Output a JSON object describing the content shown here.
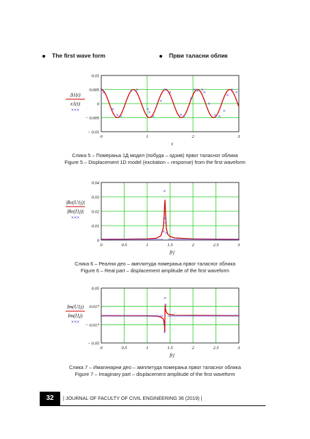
{
  "bullets": {
    "left": "The first wave form",
    "right": "Први таласни облик"
  },
  "figure5": {
    "caption_sr": "Слика 5 – Померања 1Д модел (побуда – одзив) првог таласног облика",
    "caption_en": "Figure 5 – Displacement 1D model (excitation – response) from the first waveform"
  },
  "figure6": {
    "caption_sr": "Слика 6 – Реални део – амплитуда померања првог таласног облика",
    "caption_en": "Figure 6 – Real part – displacement amplitude of the first waveform"
  },
  "figure7": {
    "caption_sr": "Слика 7 – Имагинарни део – амплитуда померања првог таласног облика",
    "caption_en": "Figure 7 – Imaginary part – displacement amplitude of the first waveform"
  },
  "footer": {
    "page": "32",
    "journal": "| JOURNAL OF FACULTY OF CIVIL ENGINEERING 36 (2019) |"
  },
  "colors": {
    "line": "#d40000",
    "marker": "#5a4fd6",
    "grid": "#22cc22",
    "axis": "#000000"
  },
  "chart_data": [
    {
      "type": "line",
      "ylabel_top": "Δ1(t)",
      "ylabel_bottom": "x1(t)",
      "ylabel_legend": "×××",
      "xlabel": "t",
      "xlim": [
        0,
        3
      ],
      "ylim": [
        -0.01,
        0.01
      ],
      "xticks": [
        "0",
        "1",
        "2",
        "3"
      ],
      "yticks": [
        "0.01",
        "0.005",
        "0",
        "− 0.005",
        "− 0.01"
      ],
      "series": [
        {
          "style": "line",
          "amplitude": 0.005,
          "period": 0.7,
          "x_range": [
            0,
            3
          ]
        },
        {
          "style": "markers",
          "x": [
            0,
            0.05,
            0.25,
            0.35,
            0.43,
            0.65,
            0.78,
            1.02,
            1.05,
            1.13,
            1.3,
            1.39,
            1.5,
            1.74,
            1.8,
            1.96,
            2.03,
            2.1,
            2.2,
            2.25,
            2.35,
            2.48,
            2.58,
            2.68,
            2.75,
            2.85,
            2.95
          ],
          "y": [
            0.005,
            0.004,
            -0.002,
            -0.004,
            -0.0045,
            0.0045,
            0.005,
            -0.002,
            -0.003,
            -0.0045,
            0.001,
            0.005,
            0.004,
            -0.004,
            -0.0045,
            0.002,
            0.005,
            0.0045,
            0.005,
            0.004,
            0,
            -0.004,
            -0.0045,
            -0.0025,
            0.003,
            0.005,
            0.004
          ]
        }
      ]
    },
    {
      "type": "line",
      "ylabel_top": "|Re(U1j)|",
      "ylabel_bottom": "|Re(I1j)|",
      "ylabel_legend": "×××",
      "xlabel": "frj",
      "xlim": [
        0,
        3
      ],
      "ylim": [
        0,
        0.04
      ],
      "xticks": [
        "0",
        "0.5",
        "1",
        "1.5",
        "2",
        "2.5",
        "3"
      ],
      "yticks": [
        "0.04",
        "0.03",
        "0.02",
        "0.01",
        "0"
      ],
      "series": [
        {
          "style": "line",
          "x": [
            0,
            1.0,
            1.2,
            1.3,
            1.35,
            1.37,
            1.38,
            1.39,
            1.4,
            1.42,
            1.45,
            1.5,
            1.6,
            2.0,
            3.0
          ],
          "y": [
            0.0005,
            0.0008,
            0.0013,
            0.003,
            0.008,
            0.016,
            0.024,
            0.028,
            0.02,
            0.008,
            0.004,
            0.0025,
            0.0015,
            0.0008,
            0.0005
          ]
        },
        {
          "style": "markers",
          "x": [
            1.38,
            1.39,
            1.4,
            1.36,
            1.42
          ],
          "y": [
            0.034,
            0.015,
            0.012,
            0.006,
            0.005
          ]
        }
      ]
    },
    {
      "type": "line",
      "ylabel_top": "Im(U1j)",
      "ylabel_bottom": "Im(I1j)",
      "ylabel_legend": "×××",
      "xlabel": "frj",
      "xlim": [
        0,
        3
      ],
      "ylim": [
        -0.05,
        0.05
      ],
      "xticks": [
        "0",
        "0.5",
        "1",
        "1.5",
        "2",
        "2.5",
        "3"
      ],
      "yticks": [
        "0.05",
        "0.017",
        "− 0.017",
        "− 0.05"
      ],
      "series": [
        {
          "style": "line",
          "x": [
            0,
            1.0,
            1.2,
            1.3,
            1.35,
            1.37,
            1.38,
            1.385,
            1.39,
            1.395,
            1.4,
            1.42,
            1.45,
            1.5,
            1.6,
            2.0,
            3.0
          ],
          "y": [
            0,
            -0.0005,
            -0.001,
            -0.003,
            -0.006,
            -0.012,
            -0.02,
            -0.03,
            0.01,
            0.02,
            0.012,
            0.006,
            0.003,
            0.0015,
            0.001,
            0.0005,
            0
          ]
        },
        {
          "style": "markers",
          "x": [
            1.38,
            1.39,
            1.4,
            1.37
          ],
          "y": [
            -0.03,
            0.032,
            0.02,
            -0.015
          ]
        }
      ]
    }
  ]
}
